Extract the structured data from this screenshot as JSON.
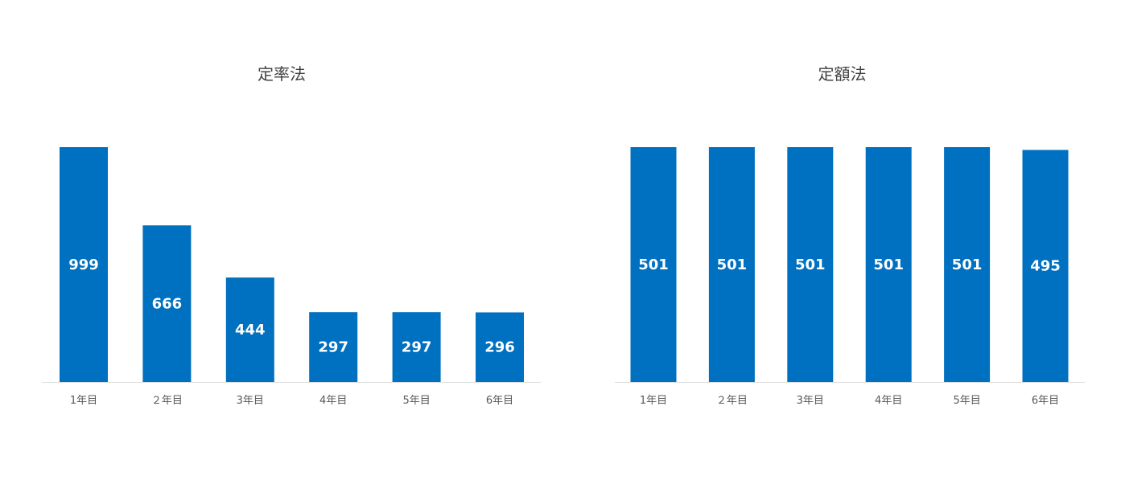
{
  "chart_data": [
    {
      "type": "bar",
      "title": "定率法",
      "categories": [
        "1年目",
        "２年目",
        "3年目",
        "4年目",
        "5年目",
        "6年目"
      ],
      "values": [
        999,
        666,
        444,
        297,
        297,
        296
      ],
      "labels": [
        "999",
        "666",
        "444",
        "297",
        "297",
        "296"
      ],
      "xlabel": "",
      "ylabel": "",
      "ylim": [
        0,
        999
      ],
      "grid": false,
      "legend": "none",
      "bar_color": "#0070C0"
    },
    {
      "type": "bar",
      "title": "定額法",
      "categories": [
        "1年目",
        "２年目",
        "3年目",
        "4年目",
        "5年目",
        "6年目"
      ],
      "values": [
        501,
        501,
        501,
        501,
        501,
        495
      ],
      "labels": [
        "501",
        "501",
        "501",
        "501",
        "501",
        "495"
      ],
      "xlabel": "",
      "ylabel": "",
      "ylim": [
        0,
        501
      ],
      "grid": false,
      "legend": "none",
      "bar_color": "#0070C0"
    }
  ]
}
